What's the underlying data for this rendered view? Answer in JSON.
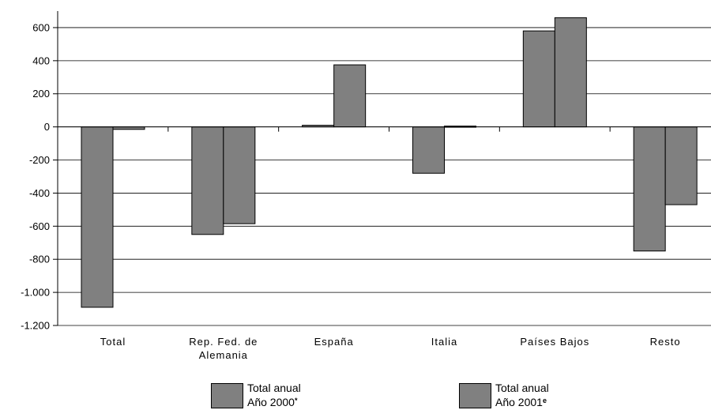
{
  "chart_data": {
    "type": "bar",
    "categories": [
      [
        "Total"
      ],
      [
        "Rep. Fed. de",
        "Alemania"
      ],
      [
        "España"
      ],
      [
        "Italia"
      ],
      [
        "Países Bajos"
      ],
      [
        "Resto"
      ]
    ],
    "series": [
      {
        "name": "Total anual Año 2000*",
        "values": [
          -1090,
          -650,
          10,
          -280,
          580,
          -750
        ],
        "color": "#808080"
      },
      {
        "name": "Total anual Año 2001e",
        "values": [
          -15,
          -585,
          375,
          5,
          660,
          -470
        ],
        "color": "#808080"
      }
    ],
    "ylim": [
      -1200,
      700
    ],
    "yticks": [
      600,
      400,
      200,
      0,
      -200,
      -400,
      -600,
      -800,
      -1000,
      -1200
    ],
    "ytick_labels": [
      "600",
      "400",
      "200",
      "0",
      "-200",
      "-400",
      "-600",
      "-800",
      "-1.000",
      "-1.200"
    ],
    "grid": true,
    "legend_placement": "bottom"
  },
  "legend": [
    {
      "line1": "Total anual",
      "line2": "Año 2000",
      "mark": "*"
    },
    {
      "line1": "Total anual",
      "line2": "Año 2001",
      "mark": "e"
    }
  ]
}
